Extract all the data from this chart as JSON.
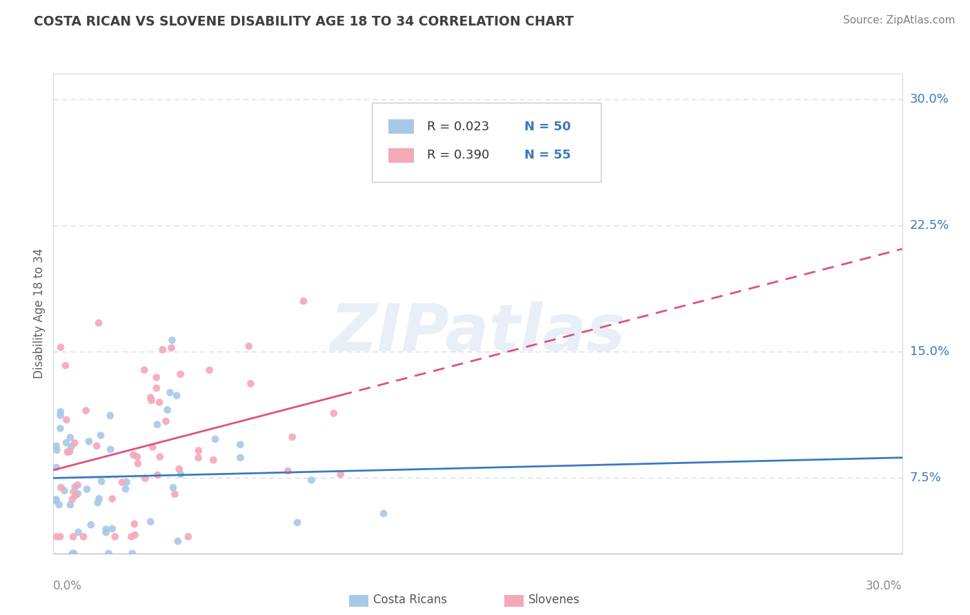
{
  "title": "COSTA RICAN VS SLOVENE DISABILITY AGE 18 TO 34 CORRELATION CHART",
  "source": "Source: ZipAtlas.com",
  "ylabel": "Disability Age 18 to 34",
  "xlim": [
    0.0,
    0.3
  ],
  "ylim": [
    0.03,
    0.315
  ],
  "yticks": [
    0.075,
    0.15,
    0.225,
    0.3
  ],
  "ytick_labels": [
    "7.5%",
    "15.0%",
    "22.5%",
    "30.0%"
  ],
  "color_blue": "#a8c8e8",
  "color_pink": "#f4a8b8",
  "line_blue": "#3a7abf",
  "line_pink": "#e05080",
  "text_blue": "#3a7abf",
  "grid_color": "#d0d8e8",
  "title_color": "#404040",
  "source_color": "#808080",
  "ylabel_color": "#606060",
  "legend_r1": "R = 0.023",
  "legend_n1": "N = 50",
  "legend_r2": "R = 0.390",
  "legend_n2": "N = 55",
  "cr_intercept": 0.076,
  "cr_slope": 0.005,
  "sl_intercept": 0.076,
  "sl_slope": 0.4,
  "seed": 99
}
